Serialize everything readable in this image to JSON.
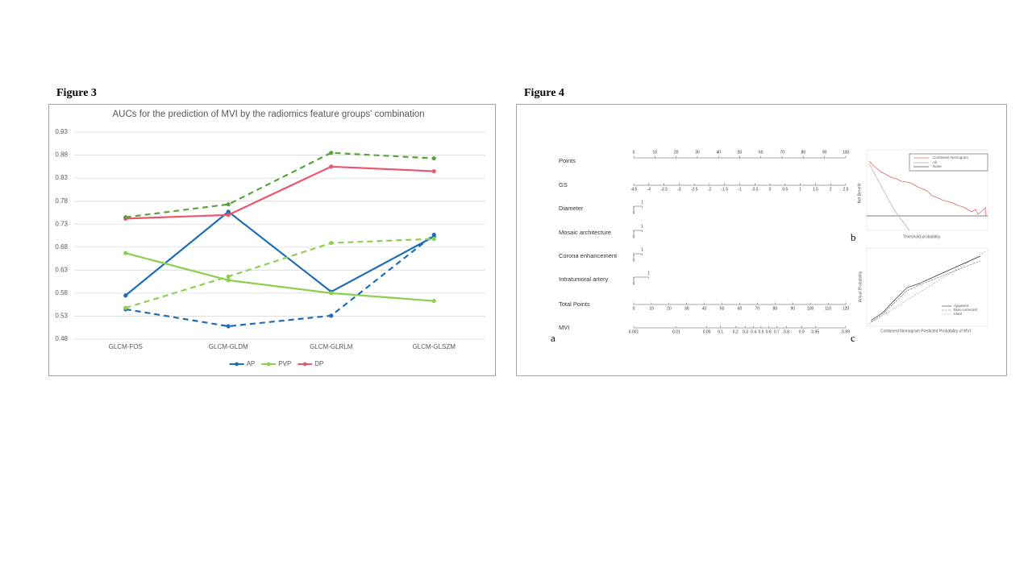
{
  "figure3_label": "Figure 3",
  "chart_data": {
    "type": "line",
    "title": "AUCs for the prediction of MVI by the radiomics feature groups' combination",
    "categories": [
      "GLCM-FOS",
      "GLCM-GLDM",
      "GLCM-GLRLM",
      "GLCM-GLSZM"
    ],
    "series": [
      {
        "name": "AP",
        "color": "#1f6db5",
        "values": [
          0.575,
          0.757,
          0.583,
          0.703
        ]
      },
      {
        "name": "PVP",
        "color": "#8dcf4f",
        "values": [
          0.667,
          0.608,
          0.58,
          0.563
        ]
      },
      {
        "name": "DP",
        "color": "#e8576f",
        "values": [
          0.742,
          0.75,
          0.855,
          0.845
        ]
      },
      {
        "color": "#1f6db5",
        "dash": true,
        "values": [
          0.545,
          0.508,
          0.531,
          0.707
        ]
      },
      {
        "color": "#8dcf4f",
        "dash": true,
        "values": [
          0.548,
          0.616,
          0.689,
          0.698
        ]
      },
      {
        "color": "#5aa33c",
        "dash": true,
        "values": [
          0.745,
          0.773,
          0.885,
          0.873
        ]
      }
    ],
    "ylim": [
      0.48,
      0.93
    ],
    "yticks": [
      0.48,
      0.53,
      0.58,
      0.63,
      0.68,
      0.73,
      0.78,
      0.83,
      0.88,
      0.93
    ],
    "grid": true,
    "legend": "bottom"
  },
  "figure4": {
    "label": "Figure 4",
    "panels": [
      "a",
      "b",
      "c"
    ],
    "nomogram": {
      "rows": [
        {
          "name": "Points",
          "ticks": [
            0,
            10,
            20,
            30,
            40,
            50,
            60,
            70,
            80,
            90,
            100
          ],
          "xlim": [
            0,
            100
          ]
        },
        {
          "name": "GS",
          "ticks": [
            -4.5,
            -4,
            -3.5,
            -3,
            -2.5,
            -2,
            -1.5,
            -1,
            -0.5,
            0,
            0.5,
            1,
            1.5,
            2,
            2.5
          ],
          "xlim": [
            -4.5,
            2.5
          ]
        },
        {
          "name": "Diameter",
          "ticks": [
            0,
            1
          ],
          "points": [
            0,
            4
          ]
        },
        {
          "name": "Mosaic architecture",
          "ticks": [
            0,
            1
          ],
          "points": [
            0,
            4
          ]
        },
        {
          "name": "Corona enhancement",
          "ticks": [
            0,
            1
          ],
          "points": [
            0,
            4
          ]
        },
        {
          "name": "Intratumoral artery",
          "ticks": [
            0,
            1
          ],
          "points": [
            0,
            7
          ]
        },
        {
          "name": "Total Points",
          "ticks": [
            0,
            10,
            20,
            30,
            40,
            50,
            60,
            70,
            80,
            90,
            100,
            110,
            120
          ],
          "xlim": [
            0,
            120
          ]
        },
        {
          "name": "MVI",
          "ticks": [
            0.001,
            0.01,
            0.05,
            0.1,
            0.2,
            0.3,
            0.4,
            0.5,
            0.6,
            0.7,
            0.8,
            0.9,
            0.95,
            0.99
          ],
          "xlim": [
            0.001,
            0.99
          ],
          "scale": "logit"
        }
      ]
    },
    "decision_curve": {
      "xlabel": "Threshold probability",
      "ylabel": "Net Benefit",
      "legend": [
        "Combined Nomogram",
        "All",
        "None"
      ]
    },
    "calibration": {
      "xlabel": "Combined Nomogram Predicted Probability of MVI",
      "ylabel": "Actual Probability",
      "legend": [
        "Apparent",
        "Bias-corrected",
        "Ideal"
      ]
    }
  }
}
